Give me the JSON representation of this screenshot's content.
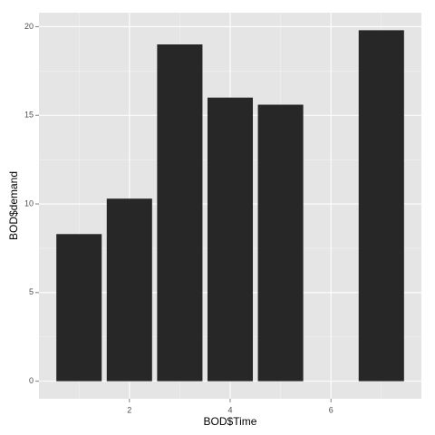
{
  "chart_data": {
    "type": "bar",
    "x": [
      1,
      2,
      3,
      4,
      5,
      7
    ],
    "values": [
      8.3,
      10.3,
      19.0,
      16.0,
      15.6,
      19.8
    ],
    "color": "#272727",
    "x_label": "BOD$Time",
    "y_label": "BOD$demand",
    "xlim": [
      0.205,
      7.795
    ],
    "xticks": [
      2,
      4,
      6
    ],
    "ylim": [
      -0.99,
      20.79
    ],
    "yticks": [
      0,
      5,
      10,
      15,
      20
    ],
    "bar_width": 0.9,
    "grid": true
  }
}
